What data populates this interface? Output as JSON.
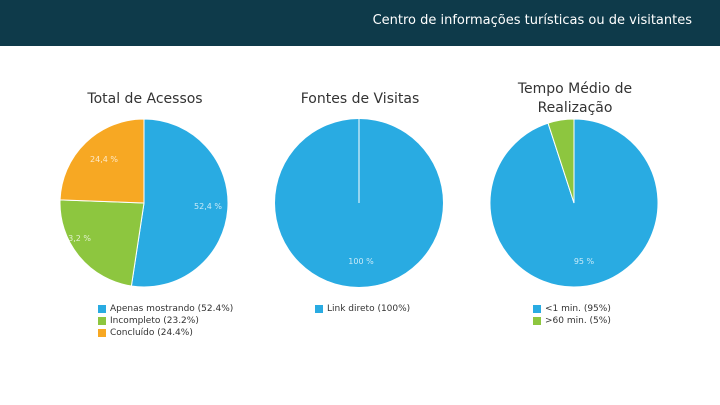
{
  "header": {
    "title": "Centro de informações turísticas ou de visitantes"
  },
  "colors": {
    "header_bg": "#0e3a4a",
    "blue": "#29abe2",
    "green": "#8dc63f",
    "orange": "#f7a823"
  },
  "chart_data": [
    {
      "type": "pie",
      "title": "Total de Acessos",
      "slices": [
        {
          "label": "Apenas mostrando",
          "value": 52.4,
          "data_label": "52,4 %",
          "legend": "Apenas mostrando (52.4%)",
          "color": "#29abe2"
        },
        {
          "label": "Incompleto",
          "value": 23.2,
          "data_label": "23,2 %",
          "legend": "Incompleto (23.2%)",
          "color": "#8dc63f"
        },
        {
          "label": "Concluído",
          "value": 24.4,
          "data_label": "24,4 %",
          "legend": "Concluído (24.4%)",
          "color": "#f7a823"
        }
      ]
    },
    {
      "type": "pie",
      "title": "Fontes de Visitas",
      "slices": [
        {
          "label": "Link direto",
          "value": 100,
          "data_label": "100 %",
          "legend": "Link direto (100%)",
          "color": "#29abe2"
        }
      ]
    },
    {
      "type": "pie",
      "title": "Tempo Médio de Realização",
      "slices": [
        {
          "label": "<1 min.",
          "value": 95,
          "data_label": "95 %",
          "legend": "<1 min. (95%)",
          "color": "#29abe2"
        },
        {
          "label": ">60 min.",
          "value": 5,
          "data_label": "",
          "legend": ">60 min. (5%)",
          "color": "#8dc63f"
        }
      ]
    }
  ]
}
